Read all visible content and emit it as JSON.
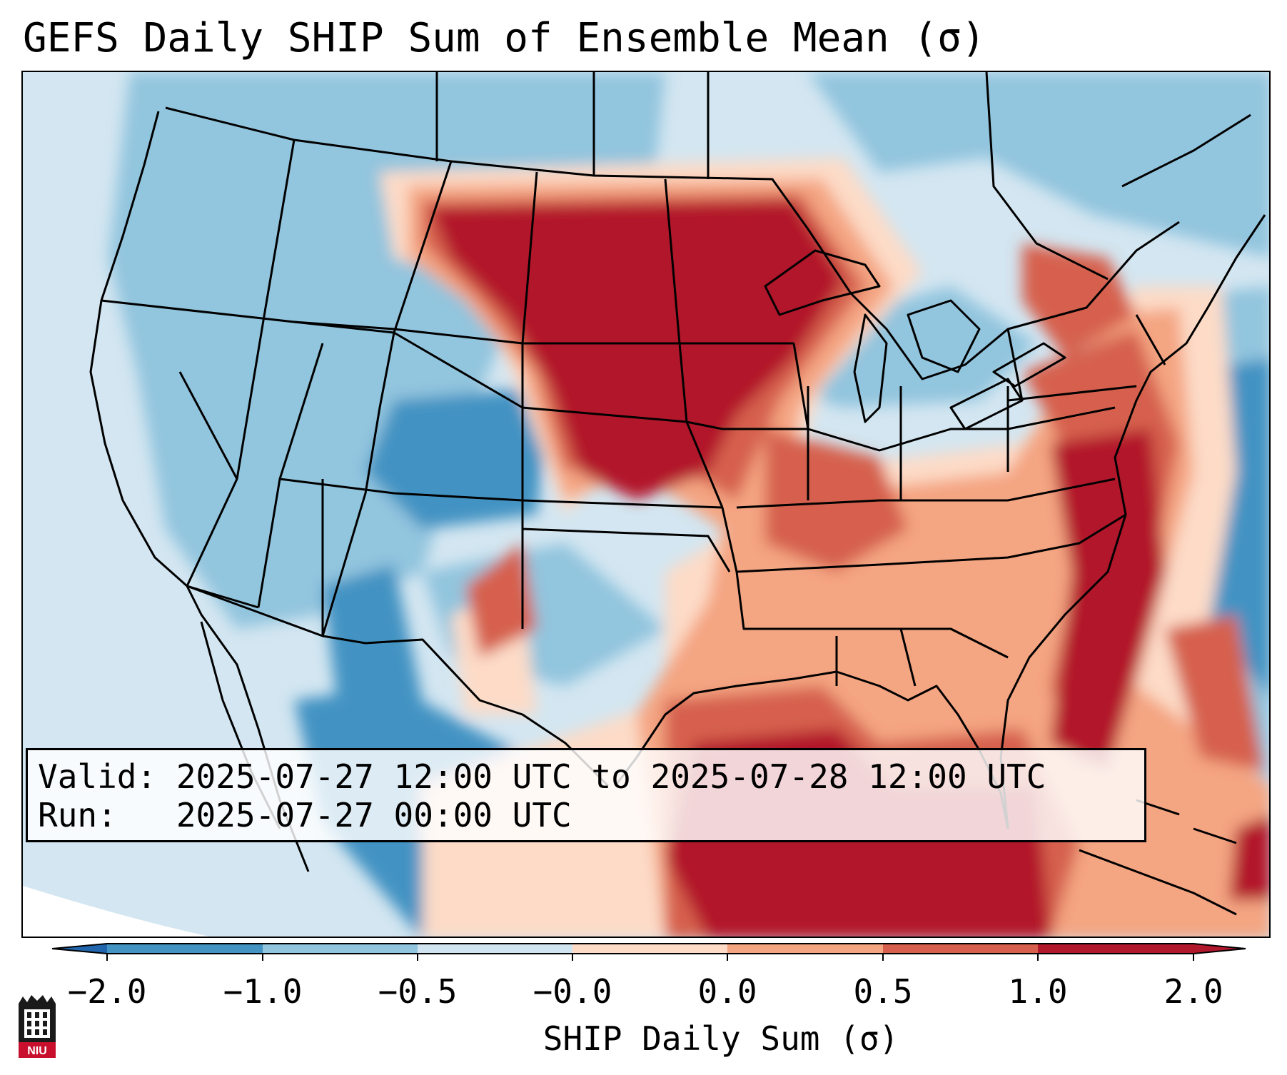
{
  "title": "GEFS Daily SHIP Sum of Ensemble Mean (σ)",
  "info": {
    "valid_line": "Valid: 2025-07-27 12:00 UTC to 2025-07-28 12:00 UTC",
    "run_line": "Run:   2025-07-27 00:00 UTC"
  },
  "colorbar": {
    "label": "SHIP Daily Sum (σ)",
    "ticks": [
      "−2.0",
      "−1.0",
      "−0.5",
      "−0.0",
      "0.0",
      "0.5",
      "1.0",
      "2.0"
    ],
    "colors": [
      "#2166ac",
      "#4393c3",
      "#92c5de",
      "#d1e5f0",
      "#fddbc7",
      "#f4a582",
      "#d6604d",
      "#b2182b"
    ]
  },
  "logo": {
    "text": "NIU",
    "color": "#c8102e"
  }
}
